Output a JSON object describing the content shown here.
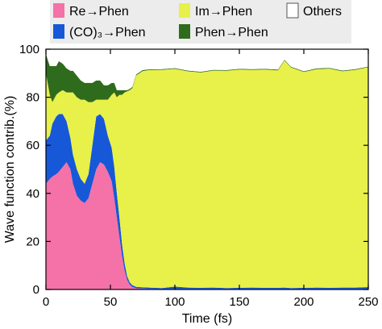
{
  "chart_data": {
    "type": "area",
    "stacked": true,
    "xlabel": "Time (fs)",
    "ylabel": "Wave function contrib.(%)",
    "xlim": [
      0,
      250
    ],
    "ylim": [
      0,
      100
    ],
    "xticks": [
      0,
      50,
      100,
      150,
      200,
      250
    ],
    "yticks": [
      0,
      20,
      40,
      60,
      80,
      100
    ],
    "grid": false,
    "legend_position": "top",
    "x": [
      0,
      3,
      5,
      8,
      10,
      13,
      16,
      19,
      21,
      24,
      27,
      30,
      33,
      36,
      39,
      42,
      45,
      48,
      51,
      53,
      55,
      57,
      59,
      61,
      63,
      65,
      67,
      70,
      75,
      80,
      90,
      100,
      110,
      120,
      130,
      140,
      150,
      160,
      170,
      180,
      185,
      190,
      200,
      210,
      220,
      230,
      240,
      250
    ],
    "series": [
      {
        "name": "Re→Phen",
        "color": "#f472a8",
        "values": [
          44,
          46,
          47,
          48,
          49,
          51,
          53,
          50,
          44,
          39,
          37,
          36,
          38,
          44,
          50,
          53,
          52,
          49,
          45,
          38,
          30,
          22,
          14,
          8,
          4,
          2,
          1,
          0.5,
          0.4,
          0.3,
          0.2,
          0.2,
          0.2,
          0.2,
          0.2,
          0.2,
          0.2,
          0.2,
          0.2,
          0.2,
          0.2,
          0.2,
          0.2,
          0.2,
          0.2,
          0.2,
          0.2,
          0.2
        ]
      },
      {
        "name": "(CO)₃→Phen",
        "color": "#1658d8",
        "values": [
          18,
          18,
          22,
          24,
          24,
          22,
          17,
          13,
          12,
          11,
          9,
          8,
          10,
          16,
          22,
          20,
          19,
          15,
          14,
          13,
          10,
          8,
          5,
          3,
          1.5,
          1,
          0.8,
          0.6,
          0.5,
          0.5,
          0.4,
          1,
          0.6,
          0.5,
          0.6,
          0.4,
          0.5,
          0.6,
          0.5,
          0.5,
          0.6,
          0.4,
          0.5,
          0.6,
          0.5,
          0.6,
          0.6,
          0.8
        ]
      },
      {
        "name": "Im→Phen",
        "color": "#e8f04a",
        "values": [
          28,
          17,
          9,
          9,
          9,
          10,
          12,
          19,
          26,
          30,
          33,
          35,
          30,
          18,
          7,
          6,
          8,
          15,
          22,
          31,
          40,
          51,
          62,
          71,
          77,
          80,
          82,
          88,
          90,
          90.5,
          90.8,
          90.6,
          90,
          89.6,
          90.3,
          90.4,
          90.8,
          90.6,
          90.8,
          90.5,
          94.5,
          91.8,
          89.8,
          90.9,
          91.2,
          90,
          90.6,
          91.5
        ]
      },
      {
        "name": "Phen→Phen",
        "color": "#2f6b1c",
        "values": [
          8,
          12,
          15,
          12,
          13,
          11,
          10,
          9,
          9,
          9,
          8,
          7,
          8,
          8,
          8,
          8,
          6,
          6,
          5,
          4,
          3,
          2,
          2,
          1,
          0.5,
          0.5,
          0.5,
          0.4,
          0.4,
          0.3,
          0.3,
          0.3,
          0.3,
          0.3,
          0.3,
          0.3,
          0.3,
          0.3,
          0.3,
          0.3,
          0.3,
          0.3,
          0.3,
          0.3,
          0.3,
          0.3,
          0.3,
          0.3
        ]
      },
      {
        "name": "Others",
        "color": "#ffffff",
        "values": [
          2,
          7,
          7,
          7,
          5,
          6,
          8,
          9,
          9,
          11,
          13,
          14,
          14,
          14,
          13,
          13,
          15,
          15,
          14,
          14,
          17,
          17,
          17,
          17,
          17,
          16.5,
          15.7,
          10.5,
          8.7,
          8.5,
          8.3,
          7.9,
          8.9,
          9.4,
          8.6,
          8.7,
          8.2,
          8.3,
          8.2,
          8.5,
          4.4,
          7.3,
          9.2,
          8,
          7.8,
          8.9,
          8.3,
          7.2
        ]
      }
    ]
  }
}
